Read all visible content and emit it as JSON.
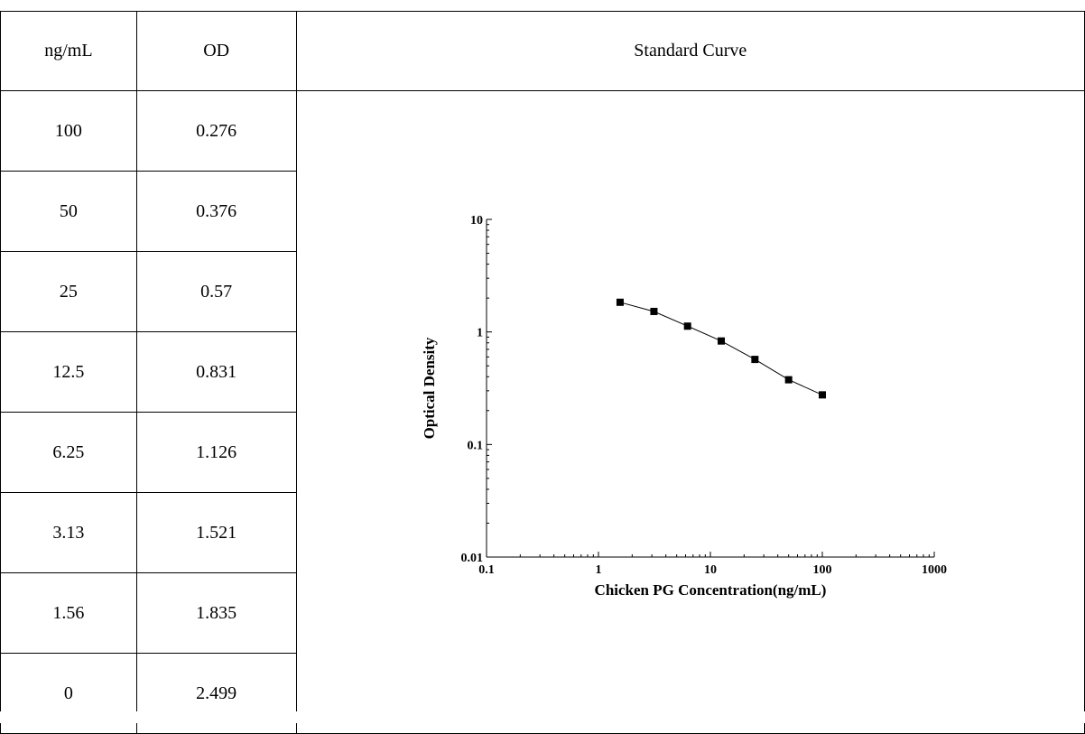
{
  "table": {
    "headers": [
      "ng/mL",
      "OD",
      "Standard Curve"
    ],
    "rows": [
      {
        "conc": "100",
        "od": "0.276"
      },
      {
        "conc": "50",
        "od": "0.376"
      },
      {
        "conc": "25",
        "od": "0.57"
      },
      {
        "conc": "12.5",
        "od": "0.831"
      },
      {
        "conc": "6.25",
        "od": "1.126"
      },
      {
        "conc": "3.13",
        "od": "1.521"
      },
      {
        "conc": "1.56",
        "od": "1.835"
      },
      {
        "conc": "0",
        "od": "2.499"
      }
    ]
  },
  "chart_data": {
    "type": "line",
    "xlabel": "Chicken PG Concentration(ng/mL)",
    "ylabel": "Optical Density",
    "xscale": "log",
    "yscale": "log",
    "xlim": [
      0.1,
      1000
    ],
    "ylim": [
      0.01,
      10
    ],
    "x_ticks": [
      "0.1",
      "1",
      "10",
      "100",
      "1000"
    ],
    "y_ticks": [
      "0.01",
      "0.1",
      "1",
      "10"
    ],
    "grid": false,
    "marker": "square",
    "series": [
      {
        "x": [
          1.56,
          3.13,
          6.25,
          12.5,
          25,
          50,
          100
        ],
        "y": [
          1.835,
          1.521,
          1.126,
          0.831,
          0.57,
          0.376,
          0.276
        ]
      }
    ]
  }
}
